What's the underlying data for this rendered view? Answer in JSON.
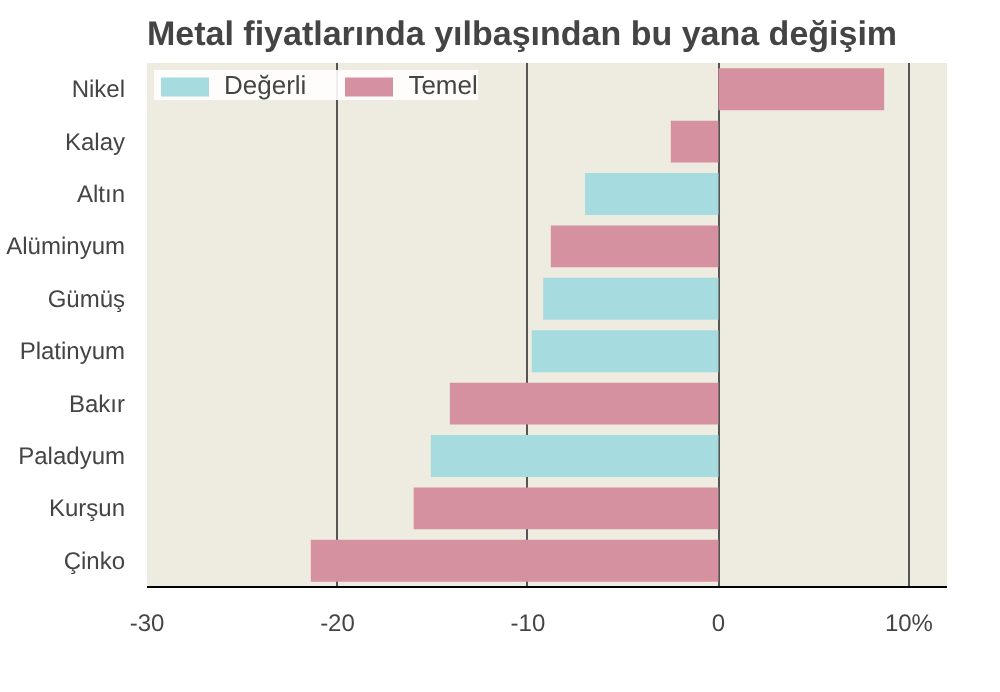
{
  "chart_data": {
    "type": "bar",
    "orientation": "horizontal",
    "title": "Metal fiyatlarında yılbaşından bu yana değişim",
    "categories": [
      "Nikel",
      "Kalay",
      "Altın",
      "Alüminyum",
      "Gümüş",
      "Platinyum",
      "Bakır",
      "Paladyum",
      "Kurşun",
      "Çinko"
    ],
    "series": [
      {
        "name": "Değerli",
        "color": "#a6dbe0",
        "values": [
          null,
          null,
          -7.0,
          null,
          -9.2,
          -9.8,
          null,
          -15.1,
          null,
          null
        ]
      },
      {
        "name": "Temel",
        "color": "#d691a0",
        "values": [
          8.7,
          -2.5,
          null,
          -8.8,
          null,
          null,
          -14.1,
          null,
          -16.0,
          -21.4
        ]
      }
    ],
    "xlim": [
      -30,
      12
    ],
    "xticks": [
      -30,
      -20,
      -10,
      0,
      {
        "value": 10,
        "label": "10%"
      }
    ],
    "grid": "x",
    "legend": "top left"
  }
}
